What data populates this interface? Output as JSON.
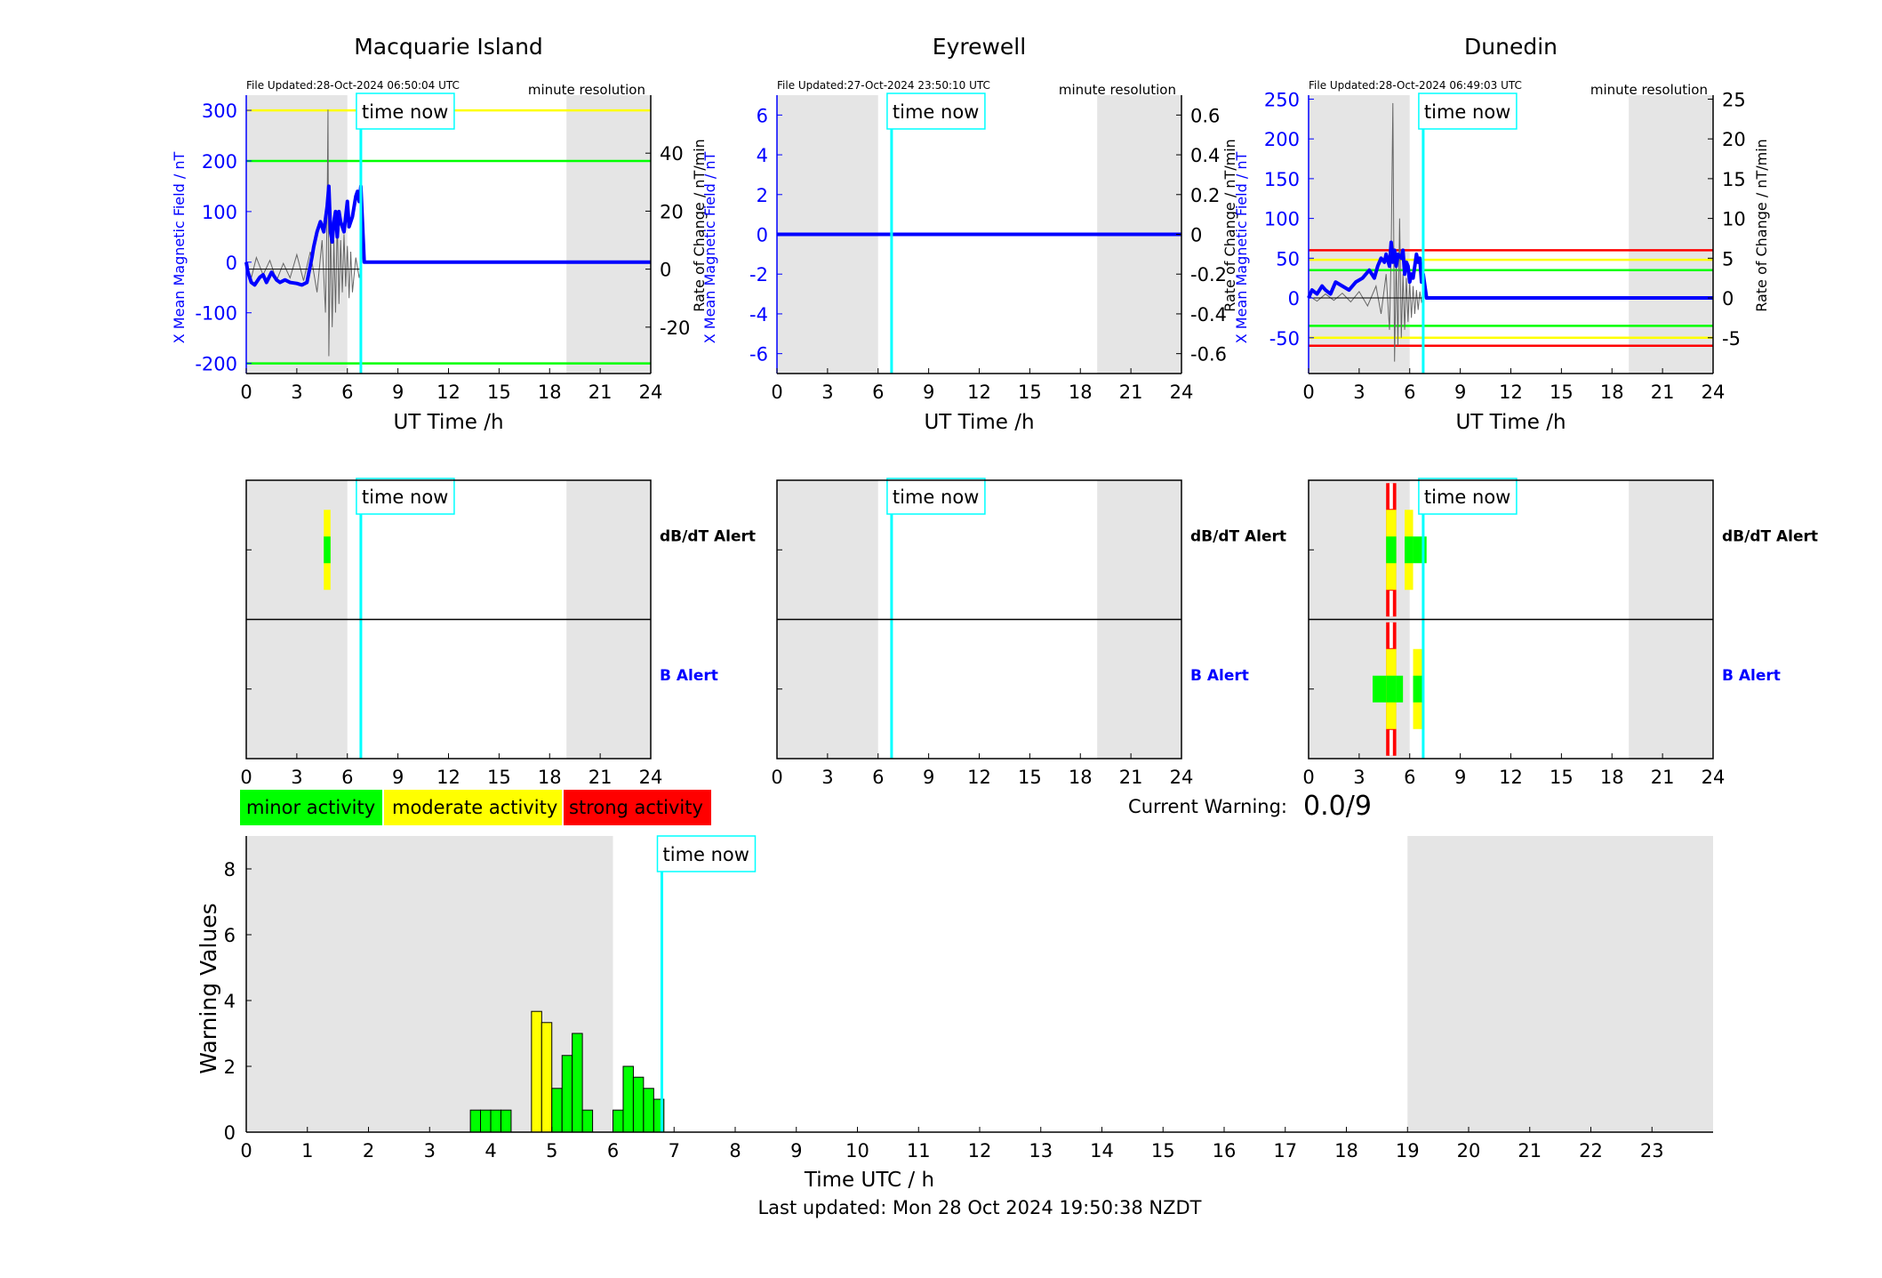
{
  "footer": "Last updated: Mon 28 Oct 2024 19:50:38 NZDT",
  "current_warning": {
    "label": "Current Warning:",
    "value": "0.0/9"
  },
  "legend": [
    {
      "label": "minor activity",
      "color": "#00ff00"
    },
    {
      "label": "moderate activity",
      "color": "#ffff00"
    },
    {
      "label": "strong activity",
      "color": "#ff0000"
    }
  ],
  "time_now_label": "time now",
  "colors": {
    "shade": "#e5e5e5",
    "time_now": "#00ffff",
    "field": "#0000ff",
    "rate": "#666666",
    "minor": "#00ff00",
    "moderate": "#ffff00",
    "strong": "#ff0000"
  },
  "chart_data": [
    {
      "type": "line",
      "title": "Macquarie Island",
      "file_updated": "File Updated:28-Oct-2024 06:50:04 UTC",
      "resolution": "minute resolution",
      "xlabel": "UT Time /h",
      "ylabel": "X Mean Magnetic Field / nT",
      "y2label": "Rate of Change / nT/min",
      "xlim": [
        0,
        24
      ],
      "xticks": [
        0,
        3,
        6,
        9,
        12,
        15,
        18,
        21,
        24
      ],
      "ylim": [
        -220,
        330
      ],
      "yticks": [
        -200,
        -100,
        0,
        100,
        200,
        300
      ],
      "y2lim": [
        -36,
        60
      ],
      "y2ticks": [
        -20,
        0,
        20,
        40
      ],
      "shaded_x": [
        [
          0,
          6
        ],
        [
          19,
          24
        ]
      ],
      "time_now": 6.8,
      "thresholds": [
        {
          "y": 300,
          "color": "#ffff00"
        },
        {
          "y": 200,
          "color": "#00ff00"
        },
        {
          "y": -200,
          "color": "#00ff00"
        }
      ],
      "series": [
        {
          "axis": "left",
          "x": [
            0,
            0.1,
            0.3,
            0.5,
            0.8,
            1.0,
            1.2,
            1.5,
            1.8,
            2.0,
            2.3,
            2.6,
            3.0,
            3.3,
            3.6,
            3.9,
            4.0,
            4.2,
            4.4,
            4.6,
            4.8,
            4.9,
            5.0,
            5.1,
            5.2,
            5.3,
            5.4,
            5.5,
            5.6,
            5.8,
            6.0,
            6.1,
            6.3,
            6.5,
            6.6,
            6.7,
            6.8,
            7,
            24
          ],
          "y": [
            0,
            -20,
            -40,
            -45,
            -30,
            -25,
            -40,
            -20,
            -35,
            -40,
            -35,
            -40,
            -42,
            -45,
            -40,
            10,
            30,
            60,
            80,
            60,
            110,
            150,
            60,
            40,
            80,
            100,
            50,
            100,
            80,
            60,
            120,
            70,
            90,
            130,
            140,
            120,
            150,
            0,
            0
          ]
        },
        {
          "axis": "right",
          "x": [
            0,
            0.3,
            0.6,
            1.0,
            1.4,
            1.8,
            2.2,
            2.6,
            3.0,
            3.4,
            3.8,
            4.2,
            4.5,
            4.7,
            4.8,
            4.85,
            4.9,
            5.0,
            5.1,
            5.2,
            5.3,
            5.4,
            5.5,
            5.6,
            5.7,
            5.8,
            5.9,
            6.0,
            6.1,
            6.2,
            6.3,
            6.5,
            6.7,
            6.8
          ],
          "y": [
            2,
            -3,
            4,
            -2,
            3,
            -4,
            2,
            -3,
            5,
            -4,
            6,
            -8,
            10,
            -15,
            20,
            55,
            -30,
            15,
            -20,
            10,
            -15,
            18,
            -12,
            10,
            -8,
            12,
            -6,
            8,
            -10,
            6,
            -8,
            4,
            -3,
            0
          ]
        }
      ]
    },
    {
      "type": "line",
      "title": "Eyrewell",
      "file_updated": "File Updated:27-Oct-2024 23:50:10 UTC",
      "resolution": "minute resolution",
      "xlabel": "UT Time /h",
      "ylabel": "X Mean Magnetic Field / nT",
      "y2label": "Rate of Change / nT/min",
      "xlim": [
        0,
        24
      ],
      "xticks": [
        0,
        3,
        6,
        9,
        12,
        15,
        18,
        21,
        24
      ],
      "ylim": [
        -7,
        7
      ],
      "yticks": [
        -6,
        -4,
        -2,
        0,
        2,
        4,
        6
      ],
      "y2lim": [
        -0.7,
        0.7
      ],
      "y2ticks": [
        -0.6,
        -0.4,
        -0.2,
        0,
        0.2,
        0.4,
        0.6
      ],
      "shaded_x": [
        [
          0,
          6
        ],
        [
          19,
          24
        ]
      ],
      "time_now": 6.8,
      "thresholds": [],
      "series": [
        {
          "axis": "left",
          "x": [
            0,
            24
          ],
          "y": [
            0,
            0
          ]
        },
        {
          "axis": "right",
          "x": [
            0,
            24
          ],
          "y": [
            0,
            0
          ]
        }
      ]
    },
    {
      "type": "line",
      "title": "Dunedin",
      "file_updated": "File Updated:28-Oct-2024 06:49:03 UTC",
      "resolution": "minute resolution",
      "xlabel": "UT Time /h",
      "ylabel": "X Mean Magnetic Field / nT",
      "y2label": "Rate of Change / nT/min",
      "xlim": [
        0,
        24
      ],
      "xticks": [
        0,
        3,
        6,
        9,
        12,
        15,
        18,
        21,
        24
      ],
      "ylim": [
        -95,
        255
      ],
      "yticks": [
        -50,
        0,
        50,
        100,
        150,
        200,
        250
      ],
      "y2lim": [
        -9.5,
        25.5
      ],
      "y2ticks": [
        -5,
        0,
        5,
        10,
        15,
        20,
        25
      ],
      "shaded_x": [
        [
          0,
          6
        ],
        [
          19,
          24
        ]
      ],
      "time_now": 6.8,
      "thresholds": [
        {
          "y": 60,
          "color": "#ff0000"
        },
        {
          "y": 48,
          "color": "#ffff00"
        },
        {
          "y": 35,
          "color": "#00ff00"
        },
        {
          "y": -35,
          "color": "#00ff00"
        },
        {
          "y": -50,
          "color": "#ffff00"
        },
        {
          "y": -60,
          "color": "#ff0000"
        }
      ],
      "series": [
        {
          "axis": "left",
          "x": [
            0,
            0.2,
            0.5,
            0.8,
            1.0,
            1.3,
            1.6,
            2.0,
            2.4,
            2.8,
            3.2,
            3.6,
            3.9,
            4.1,
            4.3,
            4.5,
            4.6,
            4.8,
            4.9,
            5.0,
            5.1,
            5.2,
            5.3,
            5.5,
            5.6,
            5.7,
            5.8,
            5.9,
            6.0,
            6.1,
            6.2,
            6.3,
            6.4,
            6.5,
            6.6,
            6.7,
            6.8,
            7,
            24
          ],
          "y": [
            0,
            10,
            5,
            15,
            10,
            5,
            20,
            15,
            10,
            20,
            25,
            35,
            25,
            40,
            50,
            45,
            55,
            40,
            70,
            45,
            60,
            40,
            55,
            50,
            60,
            30,
            45,
            40,
            20,
            30,
            25,
            40,
            55,
            45,
            50,
            20,
            30,
            0,
            0
          ]
        },
        {
          "axis": "right",
          "x": [
            0,
            0.5,
            1.0,
            1.5,
            2.0,
            2.5,
            3.0,
            3.5,
            4.0,
            4.3,
            4.6,
            4.8,
            4.9,
            5.0,
            5.1,
            5.2,
            5.3,
            5.4,
            5.5,
            5.6,
            5.7,
            5.8,
            5.9,
            6.0,
            6.1,
            6.2,
            6.3,
            6.4,
            6.5,
            6.6,
            6.7,
            6.8
          ],
          "y": [
            0.3,
            -0.4,
            0.5,
            -0.3,
            0.6,
            -0.5,
            0.8,
            -1.0,
            1.5,
            -2.0,
            3.0,
            -4.0,
            6.0,
            24.5,
            -8.0,
            5.0,
            -6.0,
            10.0,
            -5.0,
            3.0,
            -4.0,
            2.5,
            -3.0,
            2.0,
            -2.5,
            1.5,
            -2.0,
            1.0,
            -1.5,
            0.8,
            -0.5,
            0
          ]
        }
      ]
    },
    {
      "type": "heatmap",
      "title": "",
      "rows": [
        "dB/dT Alert",
        "B Alert"
      ],
      "xlim": [
        0,
        24
      ],
      "xticks": [
        0,
        3,
        6,
        9,
        12,
        15,
        18,
        21,
        24
      ],
      "shaded_x": [
        [
          0,
          6
        ],
        [
          19,
          24
        ]
      ],
      "time_now": 6.8,
      "panels": [
        {
          "station": "Macquarie Island",
          "cells": [
            {
              "row": "dB/dT Alert",
              "x0": 4.6,
              "x1": 5.0,
              "level": 2
            }
          ]
        },
        {
          "station": "Eyrewell",
          "cells": []
        },
        {
          "station": "Dunedin",
          "cells": [
            {
              "row": "dB/dT Alert",
              "x0": 4.6,
              "x1": 5.2,
              "level": 3
            },
            {
              "row": "dB/dT Alert",
              "x0": 5.7,
              "x1": 6.2,
              "level": 2
            },
            {
              "row": "dB/dT Alert",
              "x0": 6.2,
              "x1": 7.0,
              "level": 1
            },
            {
              "row": "B Alert",
              "x0": 3.8,
              "x1": 4.6,
              "level": 1
            },
            {
              "row": "B Alert",
              "x0": 4.6,
              "x1": 5.2,
              "level": 3
            },
            {
              "row": "B Alert",
              "x0": 5.2,
              "x1": 5.6,
              "level": 1
            },
            {
              "row": "B Alert",
              "x0": 6.2,
              "x1": 6.8,
              "level": 2
            }
          ]
        }
      ]
    },
    {
      "type": "bar",
      "title": "",
      "xlabel": "Time UTC / h",
      "ylabel": "Warning Values",
      "xlim": [
        0,
        24
      ],
      "xticks": [
        0,
        1,
        2,
        3,
        4,
        5,
        6,
        7,
        8,
        9,
        10,
        11,
        12,
        13,
        14,
        15,
        16,
        17,
        18,
        19,
        20,
        21,
        22,
        23
      ],
      "ylim": [
        0,
        9
      ],
      "yticks": [
        0,
        2,
        4,
        6,
        8
      ],
      "shaded_x": [
        [
          0,
          6
        ],
        [
          19,
          24
        ]
      ],
      "time_now": 6.8,
      "bar_width": 0.1667,
      "x": [
        3.667,
        3.833,
        4.0,
        4.167,
        4.667,
        4.833,
        5.0,
        5.167,
        5.333,
        5.5,
        6.0,
        6.167,
        6.333,
        6.5,
        6.667
      ],
      "values": [
        0.67,
        0.67,
        0.67,
        0.67,
        3.67,
        3.33,
        1.33,
        2.33,
        3.0,
        0.67,
        0.67,
        2.0,
        1.67,
        1.33,
        1.0
      ],
      "colors": [
        "#00ff00",
        "#00ff00",
        "#00ff00",
        "#00ff00",
        "#ffff00",
        "#ffff00",
        "#00ff00",
        "#00ff00",
        "#00ff00",
        "#00ff00",
        "#00ff00",
        "#00ff00",
        "#00ff00",
        "#00ff00",
        "#00ff00"
      ]
    }
  ]
}
